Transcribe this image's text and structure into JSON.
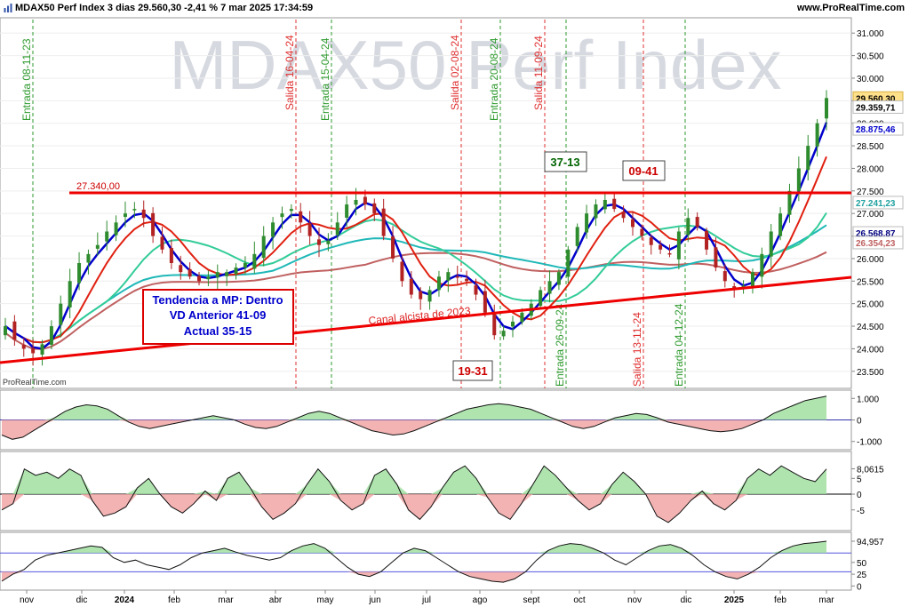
{
  "header": {
    "title": "MDAX50 Perf Index 3 dias 29.560,30 -2,41 % 7 mar 2025 17:34:59",
    "site": "www.ProRealTime.com",
    "watermark": "MDAX50 Perf Index",
    "credit": "ProRealTime.com"
  },
  "colors": {
    "up": "#2e8b2e",
    "down": "#b22222",
    "ma_blue": "#0000cc",
    "ma_red": "#e02010",
    "ma_green": "#33cc99",
    "ma_teal": "#20b8b8",
    "ma_brown": "#c06060",
    "line_red": "#ee0000",
    "entry": "#2e9a2e",
    "exit": "#e03030"
  },
  "chart_data": {
    "type": "candlestick",
    "title": "MDAX50 Perf Index",
    "x_axis_labels": [
      "nov",
      "dic",
      "2024",
      "feb",
      "mar",
      "abr",
      "may",
      "jun",
      "jul",
      "ago",
      "sept",
      "oct",
      "nov",
      "dic",
      "2025",
      "feb",
      "mar"
    ],
    "y_axis_ticks": [
      "31.000",
      "30.500",
      "30.000",
      "29.500",
      "29.000",
      "28.500",
      "28.000",
      "27.500",
      "27.000",
      "26.500",
      "26.000",
      "25.500",
      "25.000",
      "24.500",
      "24.000",
      "23.500"
    ],
    "ylim": [
      23200,
      31300
    ],
    "price_labels": [
      {
        "text": "29.560,30",
        "value": 29560,
        "color": "#000000",
        "bg": "#ffe08a"
      },
      {
        "text": "29.359,71",
        "value": 29360,
        "color": "#000000",
        "bg": "#ffffff"
      },
      {
        "text": "28.875,46",
        "value": 28875,
        "color": "#0000cc",
        "bg": "#ffffff"
      },
      {
        "text": "27.241,23",
        "value": 27241,
        "color": "#20a0a0",
        "bg": "#ffffff"
      },
      {
        "text": "26.568,87",
        "value": 26569,
        "color": "#000080",
        "bg": "#ffffff"
      },
      {
        "text": "26.354,23",
        "value": 26354,
        "color": "#c06060",
        "bg": "#ffffff"
      }
    ],
    "closes": [
      24500,
      24200,
      24000,
      23900,
      24100,
      24500,
      25000,
      25500,
      25900,
      26100,
      26300,
      26600,
      26800,
      27000,
      27100,
      26900,
      26500,
      26200,
      25900,
      25700,
      25600,
      25500,
      25600,
      25700,
      25700,
      25800,
      25900,
      26100,
      26500,
      26800,
      27000,
      27100,
      26800,
      26500,
      26300,
      26400,
      26800,
      27200,
      27300,
      27200,
      27000,
      26500,
      26000,
      25500,
      25200,
      25100,
      25300,
      25600,
      25700,
      25600,
      25500,
      25200,
      24800,
      24300,
      24400,
      24600,
      24800,
      25000,
      25300,
      25500,
      25700,
      26200,
      26700,
      27000,
      27200,
      27300,
      27100,
      26900,
      26700,
      26500,
      26300,
      26200,
      26100,
      26600,
      26900,
      26700,
      26200,
      25800,
      25500,
      25300,
      25400,
      25700,
      26100,
      26600,
      27000,
      27500,
      28000,
      28500,
      29000,
      29560
    ],
    "candle_range": [
      23200,
      31300
    ],
    "horizontal_line": {
      "label": "27.340,00",
      "value": 27340
    },
    "channel_line": {
      "label": "Canal alcista de 2023",
      "start": 23600,
      "end": 25500
    },
    "vertical_markers": [
      {
        "label": "Entrada 08-11-23",
        "type": "entry"
      },
      {
        "label": "Salida 16-04-24",
        "type": "exit"
      },
      {
        "label": "Entrada 15-04-24",
        "type": "entry"
      },
      {
        "label": "Salida 02-08-24",
        "type": "exit"
      },
      {
        "label": "Entrada 20-08-24",
        "type": "entry"
      },
      {
        "label": "Salida 11-09-24",
        "type": "exit"
      },
      {
        "label": "Entrada 26-09-24",
        "type": "entry"
      },
      {
        "label": "Salida 13-11-24",
        "type": "exit"
      },
      {
        "label": "Entrada 04-12-24",
        "type": "entry"
      }
    ],
    "annotation_boxes": [
      {
        "text": "37-13",
        "color": "#006400"
      },
      {
        "text": "09-41",
        "color": "#cc0000"
      },
      {
        "text": "19-31",
        "color": "#cc0000"
      }
    ],
    "info_box": [
      "Tendencia a MP: Dentro",
      "VD Anterior 41-09",
      "Actual 35-15"
    ],
    "indicators": [
      {
        "name": "osc1",
        "ticks": [
          "1.000",
          "0",
          "-1.000"
        ],
        "ylim": [
          -1300,
          1300
        ],
        "values": [
          -700,
          -900,
          -800,
          -500,
          -200,
          100,
          400,
          600,
          700,
          650,
          500,
          200,
          -100,
          -300,
          -400,
          -300,
          -200,
          -100,
          0,
          100,
          200,
          100,
          0,
          -200,
          -350,
          -400,
          -300,
          -100,
          100,
          300,
          400,
          300,
          100,
          -100,
          -300,
          -500,
          -600,
          -700,
          -650,
          -500,
          -300,
          -100,
          100,
          300,
          500,
          600,
          700,
          750,
          700,
          600,
          500,
          300,
          100,
          -100,
          -300,
          -400,
          -300,
          -100,
          100,
          200,
          300,
          250,
          100,
          -100,
          -200,
          -300,
          -400,
          -500,
          -550,
          -500,
          -400,
          -200,
          0,
          300,
          500,
          700,
          900,
          1000,
          1100
        ]
      },
      {
        "name": "osc2",
        "ticks": [
          "8,0615",
          "5",
          "0",
          "-5"
        ],
        "ylim": [
          -11,
          13
        ],
        "values": [
          -5,
          -3,
          8,
          6,
          7,
          5,
          8,
          6,
          -2,
          -7,
          -6,
          -4,
          2,
          5,
          0,
          -4,
          -6,
          -3,
          1,
          -2,
          5,
          7,
          2,
          -4,
          -8,
          -6,
          -3,
          3,
          8,
          4,
          -2,
          -5,
          -3,
          6,
          8,
          3,
          -5,
          -8,
          -4,
          2,
          7,
          9,
          5,
          -1,
          -6,
          -8,
          -3,
          3,
          9,
          6,
          2,
          -2,
          -5,
          -3,
          3,
          7,
          4,
          0,
          -7,
          -9,
          -6,
          -2,
          1,
          -3,
          -5,
          -2,
          5,
          8,
          6,
          9,
          7,
          5,
          4,
          8
        ]
      },
      {
        "name": "osc3",
        "ticks": [
          "94,957",
          "50",
          "25",
          "0"
        ],
        "ylim": [
          -5,
          110
        ],
        "values": [
          10,
          25,
          35,
          55,
          65,
          70,
          75,
          80,
          85,
          82,
          60,
          50,
          55,
          45,
          40,
          35,
          45,
          60,
          70,
          75,
          80,
          72,
          65,
          60,
          55,
          60,
          75,
          85,
          90,
          80,
          60,
          40,
          25,
          20,
          30,
          50,
          70,
          80,
          75,
          60,
          45,
          30,
          20,
          15,
          10,
          8,
          15,
          30,
          55,
          75,
          85,
          90,
          88,
          80,
          70,
          55,
          45,
          60,
          75,
          85,
          88,
          80,
          65,
          45,
          30,
          20,
          15,
          25,
          40,
          60,
          75,
          85,
          90,
          92,
          95
        ]
      }
    ]
  }
}
